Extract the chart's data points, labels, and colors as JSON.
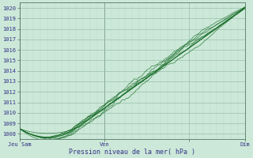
{
  "title": "Pression niveau de la mer( hPa )",
  "ylabel_ticks": [
    1008,
    1009,
    1010,
    1011,
    1012,
    1013,
    1014,
    1015,
    1016,
    1017,
    1018,
    1019,
    1020
  ],
  "ylim": [
    1007.5,
    1020.5
  ],
  "xlim": [
    0,
    96
  ],
  "xtick_positions": [
    0,
    36,
    72,
    96
  ],
  "xtick_labels": [
    "Jeu Sam",
    "Ven",
    "",
    "Dim"
  ],
  "bg_color": "#cce8d8",
  "minor_grid_color": "#b8d8c8",
  "major_grid_color": "#99c0aa",
  "line_color": "#1a6e2a",
  "label_color": "#333388",
  "n_points": 400,
  "n_lines": 6
}
